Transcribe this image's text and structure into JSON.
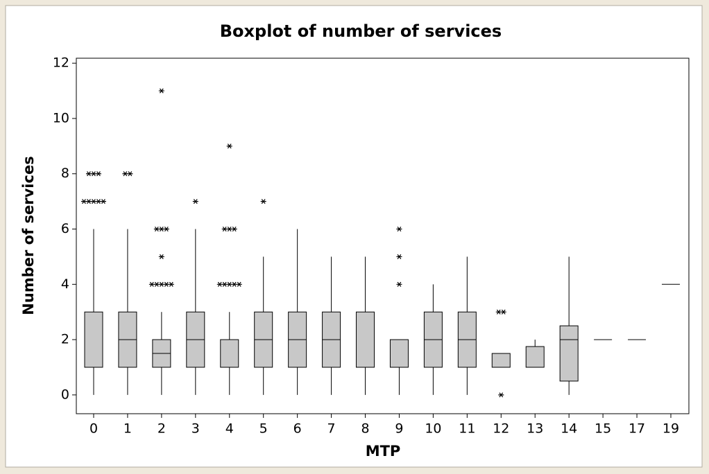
{
  "chart_data": {
    "type": "box",
    "title": "Boxplot of number of services",
    "xlabel": "MTP",
    "ylabel": "Number of services",
    "categories": [
      "0",
      "1",
      "2",
      "3",
      "4",
      "5",
      "6",
      "7",
      "8",
      "9",
      "10",
      "11",
      "12",
      "13",
      "14",
      "15",
      "17",
      "19"
    ],
    "boxes": [
      {
        "min": 0,
        "q1": 1,
        "median": 1,
        "q3": 3,
        "max": 6,
        "outliers": [
          7,
          7,
          7,
          7,
          7,
          8,
          8,
          8
        ]
      },
      {
        "min": 0,
        "q1": 1,
        "median": 2,
        "q3": 3,
        "max": 6,
        "outliers": [
          8,
          8
        ]
      },
      {
        "min": 0,
        "q1": 1,
        "median": 1.5,
        "q3": 2,
        "max": 3,
        "outliers": [
          4,
          4,
          4,
          4,
          4,
          5,
          6,
          6,
          6,
          11
        ]
      },
      {
        "min": 0,
        "q1": 1,
        "median": 2,
        "q3": 3,
        "max": 6,
        "outliers": [
          7
        ]
      },
      {
        "min": 0,
        "q1": 1,
        "median": 1,
        "q3": 2,
        "max": 3,
        "outliers": [
          4,
          4,
          4,
          4,
          4,
          6,
          6,
          6,
          9
        ]
      },
      {
        "min": 0,
        "q1": 1,
        "median": 2,
        "q3": 3,
        "max": 5,
        "outliers": [
          7
        ]
      },
      {
        "min": 0,
        "q1": 1,
        "median": 2,
        "q3": 3,
        "max": 6,
        "outliers": []
      },
      {
        "min": 0,
        "q1": 1,
        "median": 2,
        "q3": 3,
        "max": 5,
        "outliers": []
      },
      {
        "min": 0,
        "q1": 1,
        "median": 1,
        "q3": 3,
        "max": 5,
        "outliers": []
      },
      {
        "min": 0,
        "q1": 1,
        "median": 1,
        "q3": 2,
        "max": 2,
        "outliers": [
          4,
          5,
          6
        ]
      },
      {
        "min": 0,
        "q1": 1,
        "median": 2,
        "q3": 3,
        "max": 4,
        "outliers": []
      },
      {
        "min": 0,
        "q1": 1,
        "median": 2,
        "q3": 3,
        "max": 5,
        "outliers": []
      },
      {
        "min": 1,
        "q1": 1,
        "median": 1,
        "q3": 1.5,
        "max": 1.5,
        "outliers": [
          0,
          3,
          3
        ]
      },
      {
        "min": 1,
        "q1": 1,
        "median": 1,
        "q3": 1.75,
        "max": 2,
        "outliers": []
      },
      {
        "min": 0,
        "q1": 0.5,
        "median": 2,
        "q3": 2.5,
        "max": 5,
        "outliers": []
      },
      {
        "min": 2,
        "q1": 2,
        "median": 2,
        "q3": 2,
        "max": 2,
        "outliers": []
      },
      {
        "min": 2,
        "q1": 2,
        "median": 2,
        "q3": 2,
        "max": 2,
        "outliers": []
      },
      {
        "min": 4,
        "q1": 4,
        "median": 4,
        "q3": 4,
        "max": 4,
        "outliers": []
      }
    ],
    "color": "#c8c8c8",
    "ylim": [
      -0.68,
      12.18
    ],
    "yticks": [
      0,
      2,
      4,
      6,
      8,
      10,
      12
    ]
  }
}
